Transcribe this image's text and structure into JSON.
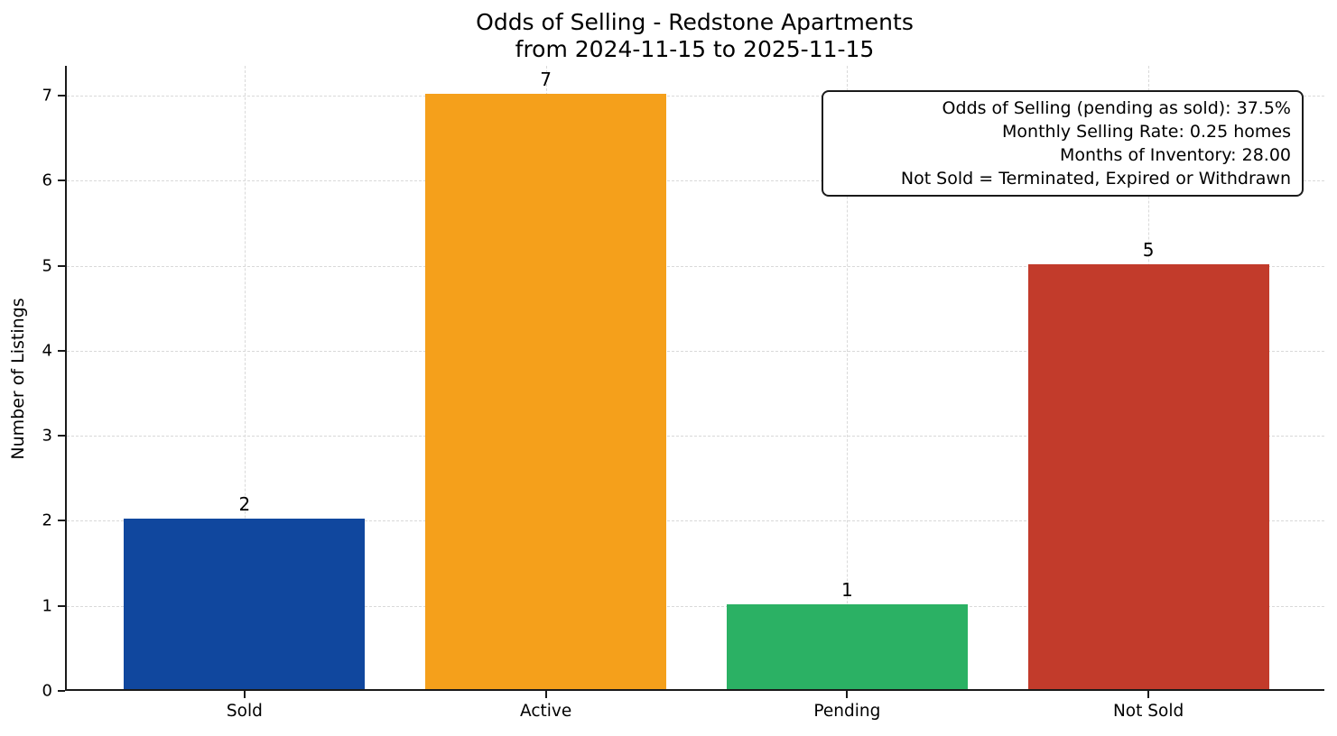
{
  "title": {
    "line1": "Odds of Selling - Redstone Apartments",
    "line2": "from 2024-11-15 to 2025-11-15"
  },
  "chart_data": {
    "type": "bar",
    "categories": [
      "Sold",
      "Active",
      "Pending",
      "Not Sold"
    ],
    "values": [
      2,
      7,
      1,
      5
    ],
    "bar_labels": [
      "2",
      "7",
      "1",
      "5"
    ],
    "bar_colors": [
      "#10479e",
      "#f5a01b",
      "#2bb164",
      "#c23b2b"
    ],
    "title": "Odds of Selling - Redstone Apartments\nfrom 2024-11-15 to 2025-11-15",
    "xlabel": "",
    "ylabel": "Number of Listings",
    "ylim": [
      0,
      7.35
    ],
    "yticks": [
      0,
      1,
      2,
      3,
      4,
      5,
      6,
      7
    ],
    "grid": true,
    "grid_style": "dashed",
    "legend": null,
    "annotation_box_lines": [
      "Odds of Selling (pending as sold): 37.5%",
      "Monthly Selling Rate: 0.25 homes",
      "Months of Inventory: 28.00",
      "Not Sold = Terminated, Expired or Withdrawn"
    ]
  }
}
